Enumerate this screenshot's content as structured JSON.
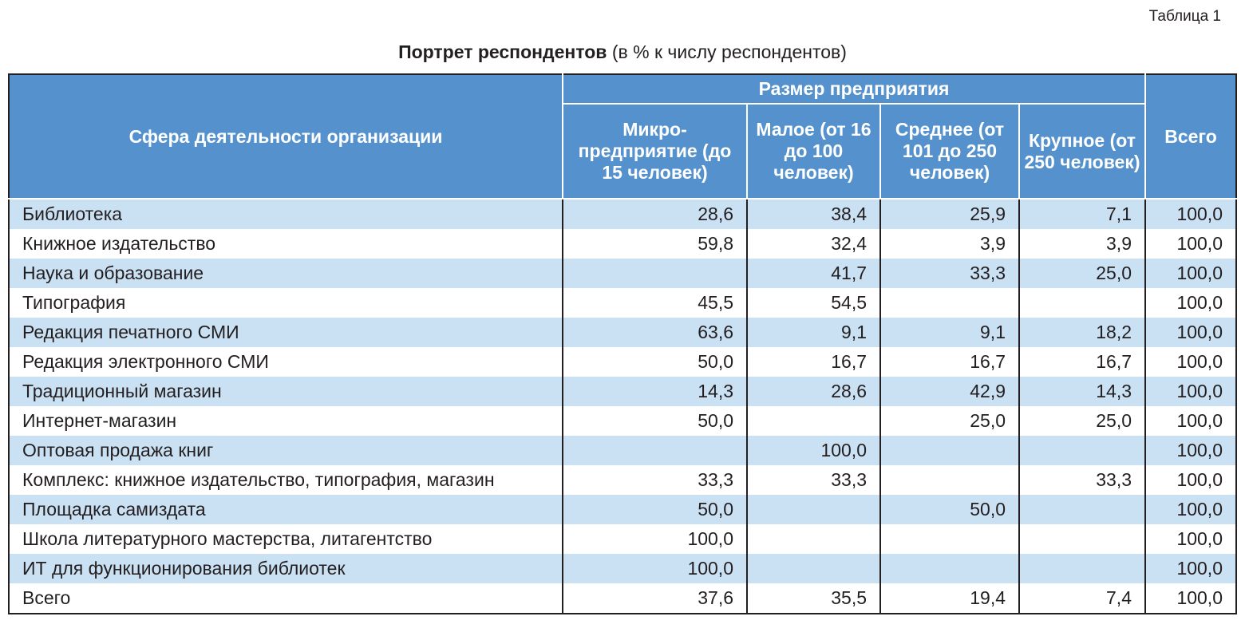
{
  "table_number": "Таблица 1",
  "title_bold": "Портрет респондентов",
  "title_rest": " (в % к числу респондентов)",
  "headers": {
    "sphere": "Сфера деятельности организации",
    "size_group": "Размер предприятия",
    "micro": "Микро-предприятие (до 15 человек)",
    "small": "Малое (от 16 до 100 человек)",
    "medium": "Среднее (от 101 до 250 человек)",
    "large": "Крупное (от 250 человек)",
    "total": "Всего"
  },
  "rows": [
    {
      "name": "Библиотека",
      "micro": "28,6",
      "small": "38,4",
      "medium": "25,9",
      "large": "7,1",
      "total": "100,0"
    },
    {
      "name": "Книжное издательство",
      "micro": "59,8",
      "small": "32,4",
      "medium": "3,9",
      "large": "3,9",
      "total": "100,0"
    },
    {
      "name": "Наука и образование",
      "micro": "",
      "small": "41,7",
      "medium": "33,3",
      "large": "25,0",
      "total": "100,0"
    },
    {
      "name": "Типография",
      "micro": "45,5",
      "small": "54,5",
      "medium": "",
      "large": "",
      "total": "100,0"
    },
    {
      "name": "Редакция печатного СМИ",
      "micro": "63,6",
      "small": "9,1",
      "medium": "9,1",
      "large": "18,2",
      "total": "100,0"
    },
    {
      "name": "Редакция электронного СМИ",
      "micro": "50,0",
      "small": "16,7",
      "medium": "16,7",
      "large": "16,7",
      "total": "100,0"
    },
    {
      "name": "Традиционный магазин",
      "micro": "14,3",
      "small": "28,6",
      "medium": "42,9",
      "large": "14,3",
      "total": "100,0"
    },
    {
      "name": "Интернет-магазин",
      "micro": "50,0",
      "small": "",
      "medium": "25,0",
      "large": "25,0",
      "total": "100,0"
    },
    {
      "name": "Оптовая продажа книг",
      "micro": "",
      "small": "100,0",
      "medium": "",
      "large": "",
      "total": "100,0"
    },
    {
      "name": "Комплекс: книжное издательство, типография, магазин",
      "micro": "33,3",
      "small": "33,3",
      "medium": "",
      "large": "33,3",
      "total": "100,0"
    },
    {
      "name": "Площадка самиздата",
      "micro": "50,0",
      "small": "",
      "medium": "50,0",
      "large": "",
      "total": "100,0"
    },
    {
      "name": "Школа литературного мастерства, литагентство",
      "micro": "100,0",
      "small": "",
      "medium": "",
      "large": "",
      "total": "100,0"
    },
    {
      "name": "ИТ для функционирования библиотек",
      "micro": "100,0",
      "small": "",
      "medium": "",
      "large": "",
      "total": "100,0"
    },
    {
      "name": "Всего",
      "micro": "37,6",
      "small": "35,5",
      "medium": "19,4",
      "large": "7,4",
      "total": "100,0"
    }
  ]
}
